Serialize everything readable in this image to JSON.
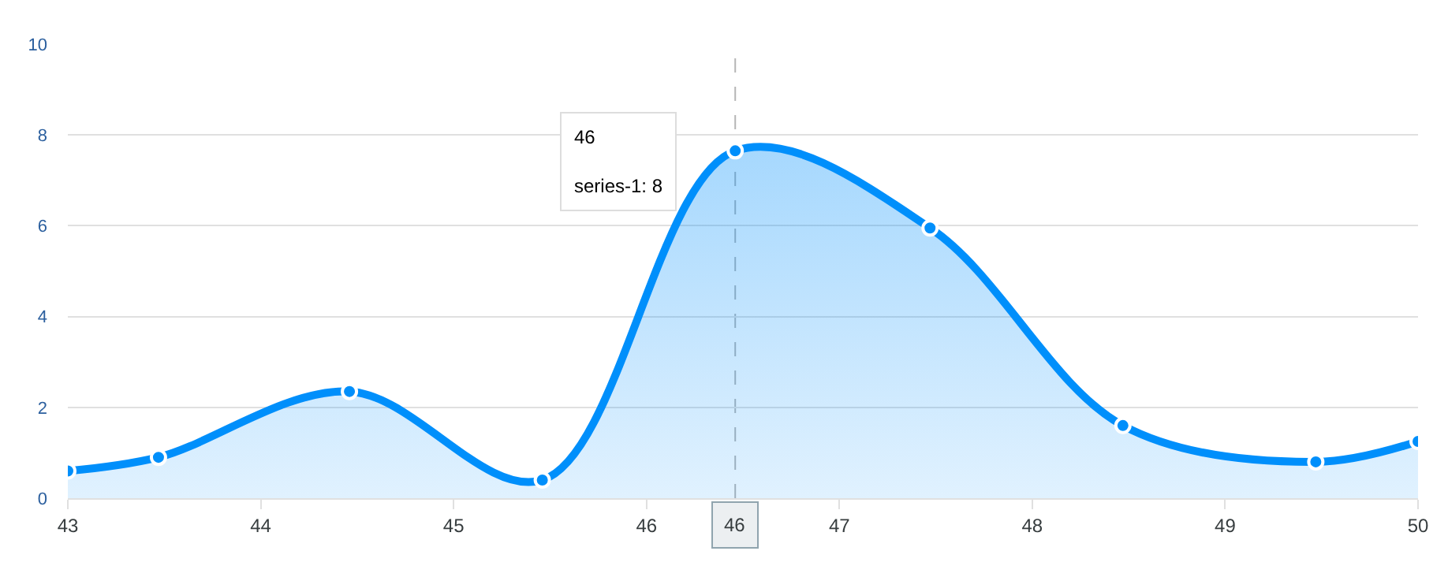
{
  "chart_data": {
    "type": "area",
    "x": [
      43,
      43.47,
      44.46,
      45.46,
      46.46,
      47.47,
      48.47,
      49.47,
      50
    ],
    "series": [
      {
        "color": "#008ffb",
        "values": [
          0.6,
          0.9,
          2.35,
          0.4,
          7.65,
          5.95,
          1.6,
          0.8,
          1.25
        ]
      }
    ],
    "xlim": [
      43,
      50
    ],
    "xticks": [
      43,
      44,
      45,
      46,
      47,
      48,
      49,
      50
    ],
    "ylim": [
      0,
      10
    ],
    "yticks": [
      0,
      2,
      4,
      6,
      8,
      10
    ],
    "grid": "y",
    "legend": false,
    "marker": "circle",
    "line_style": "solid",
    "ref_lines": [
      {
        "axis": "x",
        "value": 46.46,
        "label": "46",
        "color": "#b6b6b6",
        "line_style": "dashed"
      }
    ],
    "annotations": [
      "46",
      "series-1: 8"
    ]
  }
}
